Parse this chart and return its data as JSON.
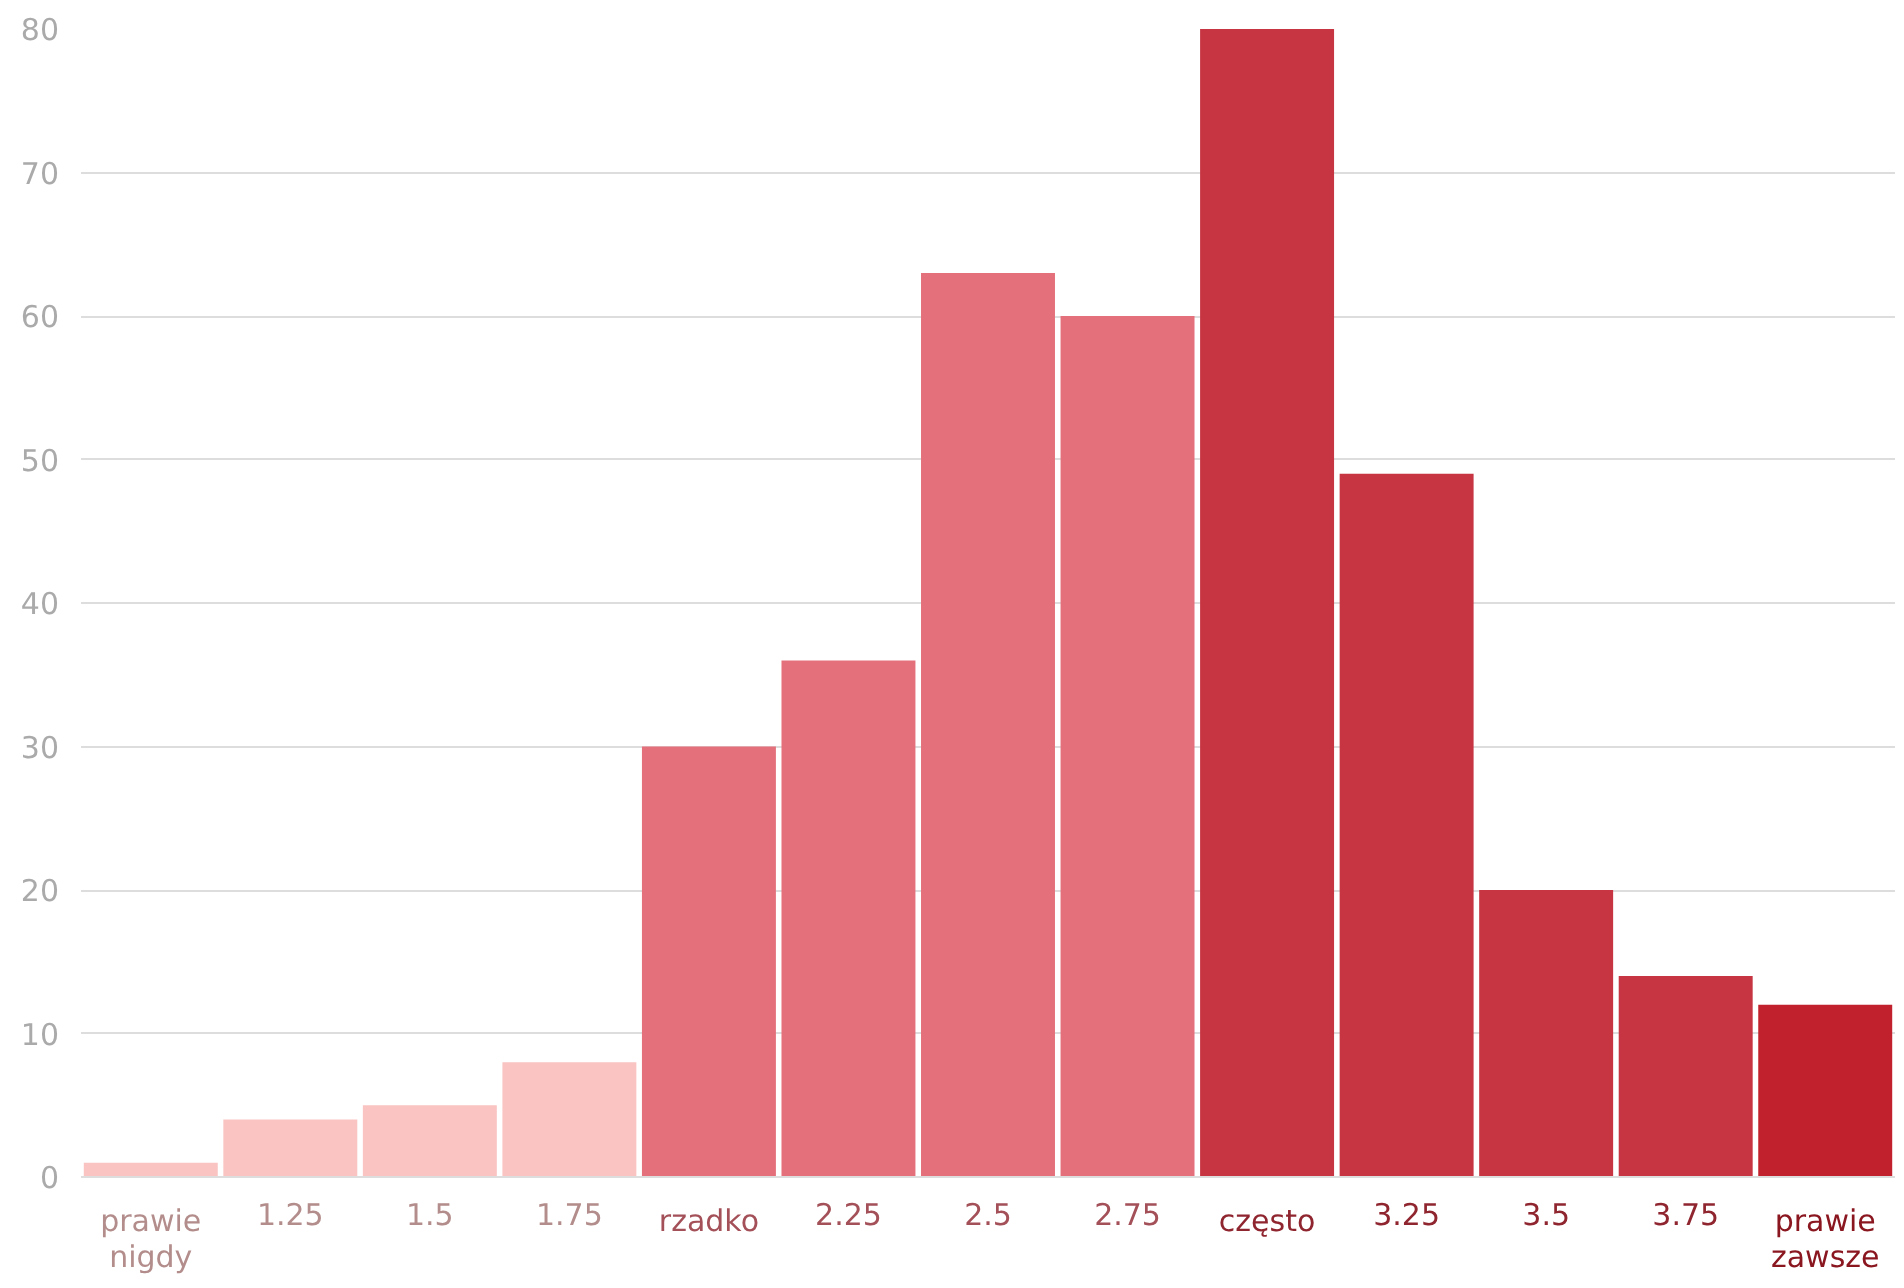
{
  "chart_data": {
    "type": "bar",
    "categories": [
      "prawie nigdy",
      "1.25",
      "1.5",
      "1.75",
      "rzadko",
      "2.25",
      "2.5",
      "2.75",
      "często",
      "3.25",
      "3.5",
      "3.75",
      "prawie zawsze"
    ],
    "values": [
      1,
      4,
      5,
      8,
      30,
      36,
      63,
      60,
      80,
      49,
      20,
      14,
      12
    ],
    "colors": [
      "#f9c4c2",
      "#f9c4c2",
      "#f9c4c2",
      "#f9c4c2",
      "#e4707b",
      "#e4707b",
      "#e4707b",
      "#e4707b",
      "#c73442",
      "#c73442",
      "#c73442",
      "#c73442",
      "#c0212d"
    ],
    "ylim": [
      0,
      80
    ],
    "yticks": [
      0,
      10,
      20,
      30,
      40,
      50,
      60,
      70,
      80
    ],
    "grid": "y"
  }
}
